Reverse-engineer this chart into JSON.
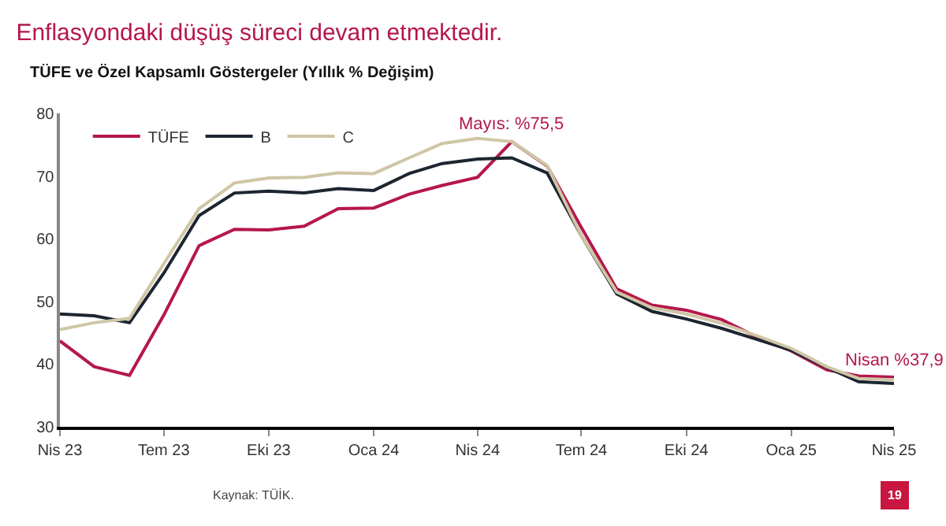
{
  "chart_data": {
    "type": "line",
    "title": "Enflasyondaki düşüş süreci devam etmektedir.",
    "subtitle": "TÜFE ve Özel Kapsamlı Göstergeler (Yıllık % Değişim)",
    "x": [
      "2023-04",
      "2023-05",
      "2023-06",
      "2023-07",
      "2023-08",
      "2023-09",
      "2023-10",
      "2023-11",
      "2023-12",
      "2024-01",
      "2024-02",
      "2024-03",
      "2024-04",
      "2024-05",
      "2024-06",
      "2024-07",
      "2024-08",
      "2024-09",
      "2024-10",
      "2024-11",
      "2024-12",
      "2025-01",
      "2025-02",
      "2025-03",
      "2025-04"
    ],
    "series": [
      {
        "name": "TÜFE",
        "color": "#b5174b",
        "values": [
          43.7,
          39.6,
          38.2,
          47.8,
          58.9,
          61.5,
          61.4,
          62.0,
          64.8,
          64.9,
          67.1,
          68.5,
          69.8,
          75.5,
          71.6,
          61.8,
          52.0,
          49.4,
          48.6,
          47.1,
          44.4,
          42.1,
          39.1,
          38.1,
          37.9
        ]
      },
      {
        "name": "B",
        "color": "#1c2530",
        "values": [
          48.0,
          47.7,
          46.6,
          54.5,
          63.7,
          67.3,
          67.6,
          67.3,
          68.0,
          67.7,
          70.4,
          72.0,
          72.7,
          72.9,
          70.5,
          60.5,
          51.2,
          48.4,
          47.2,
          45.7,
          44.0,
          42.2,
          39.5,
          37.2,
          36.9
        ]
      },
      {
        "name": "C",
        "color": "#cfc6a6",
        "values": [
          45.5,
          46.6,
          47.3,
          56.0,
          64.8,
          68.9,
          69.7,
          69.8,
          70.5,
          70.4,
          72.9,
          75.2,
          76.0,
          75.5,
          71.7,
          60.5,
          51.5,
          49.0,
          48.0,
          46.5,
          44.6,
          42.5,
          39.6,
          37.7,
          37.5
        ]
      }
    ],
    "xlim": [
      "2023-04",
      "2025-04"
    ],
    "xticks": [
      {
        "value": "2023-04",
        "label": "Nis 23"
      },
      {
        "value": "2023-07",
        "label": "Tem 23"
      },
      {
        "value": "2023-10",
        "label": "Eki 23"
      },
      {
        "value": "2024-01",
        "label": "Oca 24"
      },
      {
        "value": "2024-04",
        "label": "Nis 24"
      },
      {
        "value": "2024-07",
        "label": "Tem 24"
      },
      {
        "value": "2024-10",
        "label": "Eki 24"
      },
      {
        "value": "2025-01",
        "label": "Oca 25"
      },
      {
        "value": "2025-04",
        "label": "Nis 25"
      }
    ],
    "ylim": [
      30,
      80
    ],
    "yticks": [
      30,
      40,
      50,
      60,
      70,
      80
    ],
    "grid": false,
    "legend": "top left",
    "marker": "none",
    "line_style": "solid",
    "annotations": [
      {
        "text": "Mayıs: %75,5",
        "x": "2024-05",
        "y": 75.5
      },
      {
        "text": "Nisan %37,9",
        "x": "2025-04",
        "y": 37.9
      },
      "Kaynak: TÜİK.",
      "19"
    ]
  }
}
